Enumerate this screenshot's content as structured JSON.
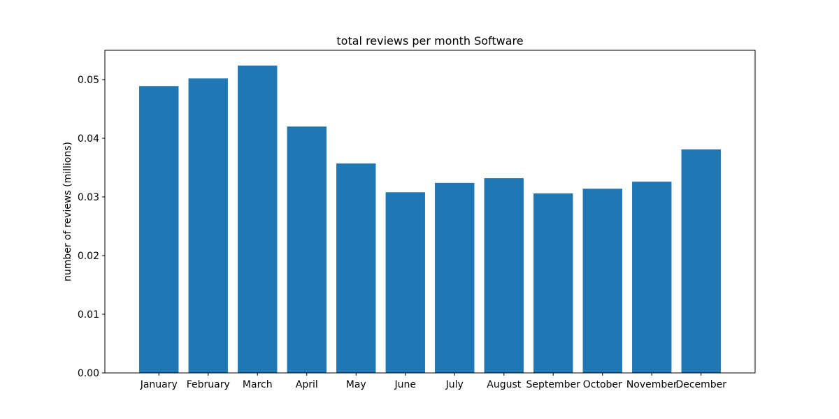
{
  "chart_data": {
    "type": "bar",
    "title": "total reviews per month Software",
    "xlabel": "",
    "ylabel": "number of reviews (millions)",
    "categories": [
      "January",
      "February",
      "March",
      "April",
      "May",
      "June",
      "July",
      "August",
      "September",
      "October",
      "November",
      "December"
    ],
    "values": [
      0.0489,
      0.0502,
      0.0524,
      0.042,
      0.0357,
      0.0308,
      0.0324,
      0.0332,
      0.0306,
      0.0314,
      0.0326,
      0.0381
    ],
    "ylim": [
      0,
      0.055
    ],
    "yticks": [
      0.0,
      0.01,
      0.02,
      0.03,
      0.04,
      0.05
    ],
    "ytick_labels": [
      "0.00",
      "0.01",
      "0.02",
      "0.03",
      "0.04",
      "0.05"
    ],
    "grid": false,
    "bar_color": "#1f77b4"
  }
}
